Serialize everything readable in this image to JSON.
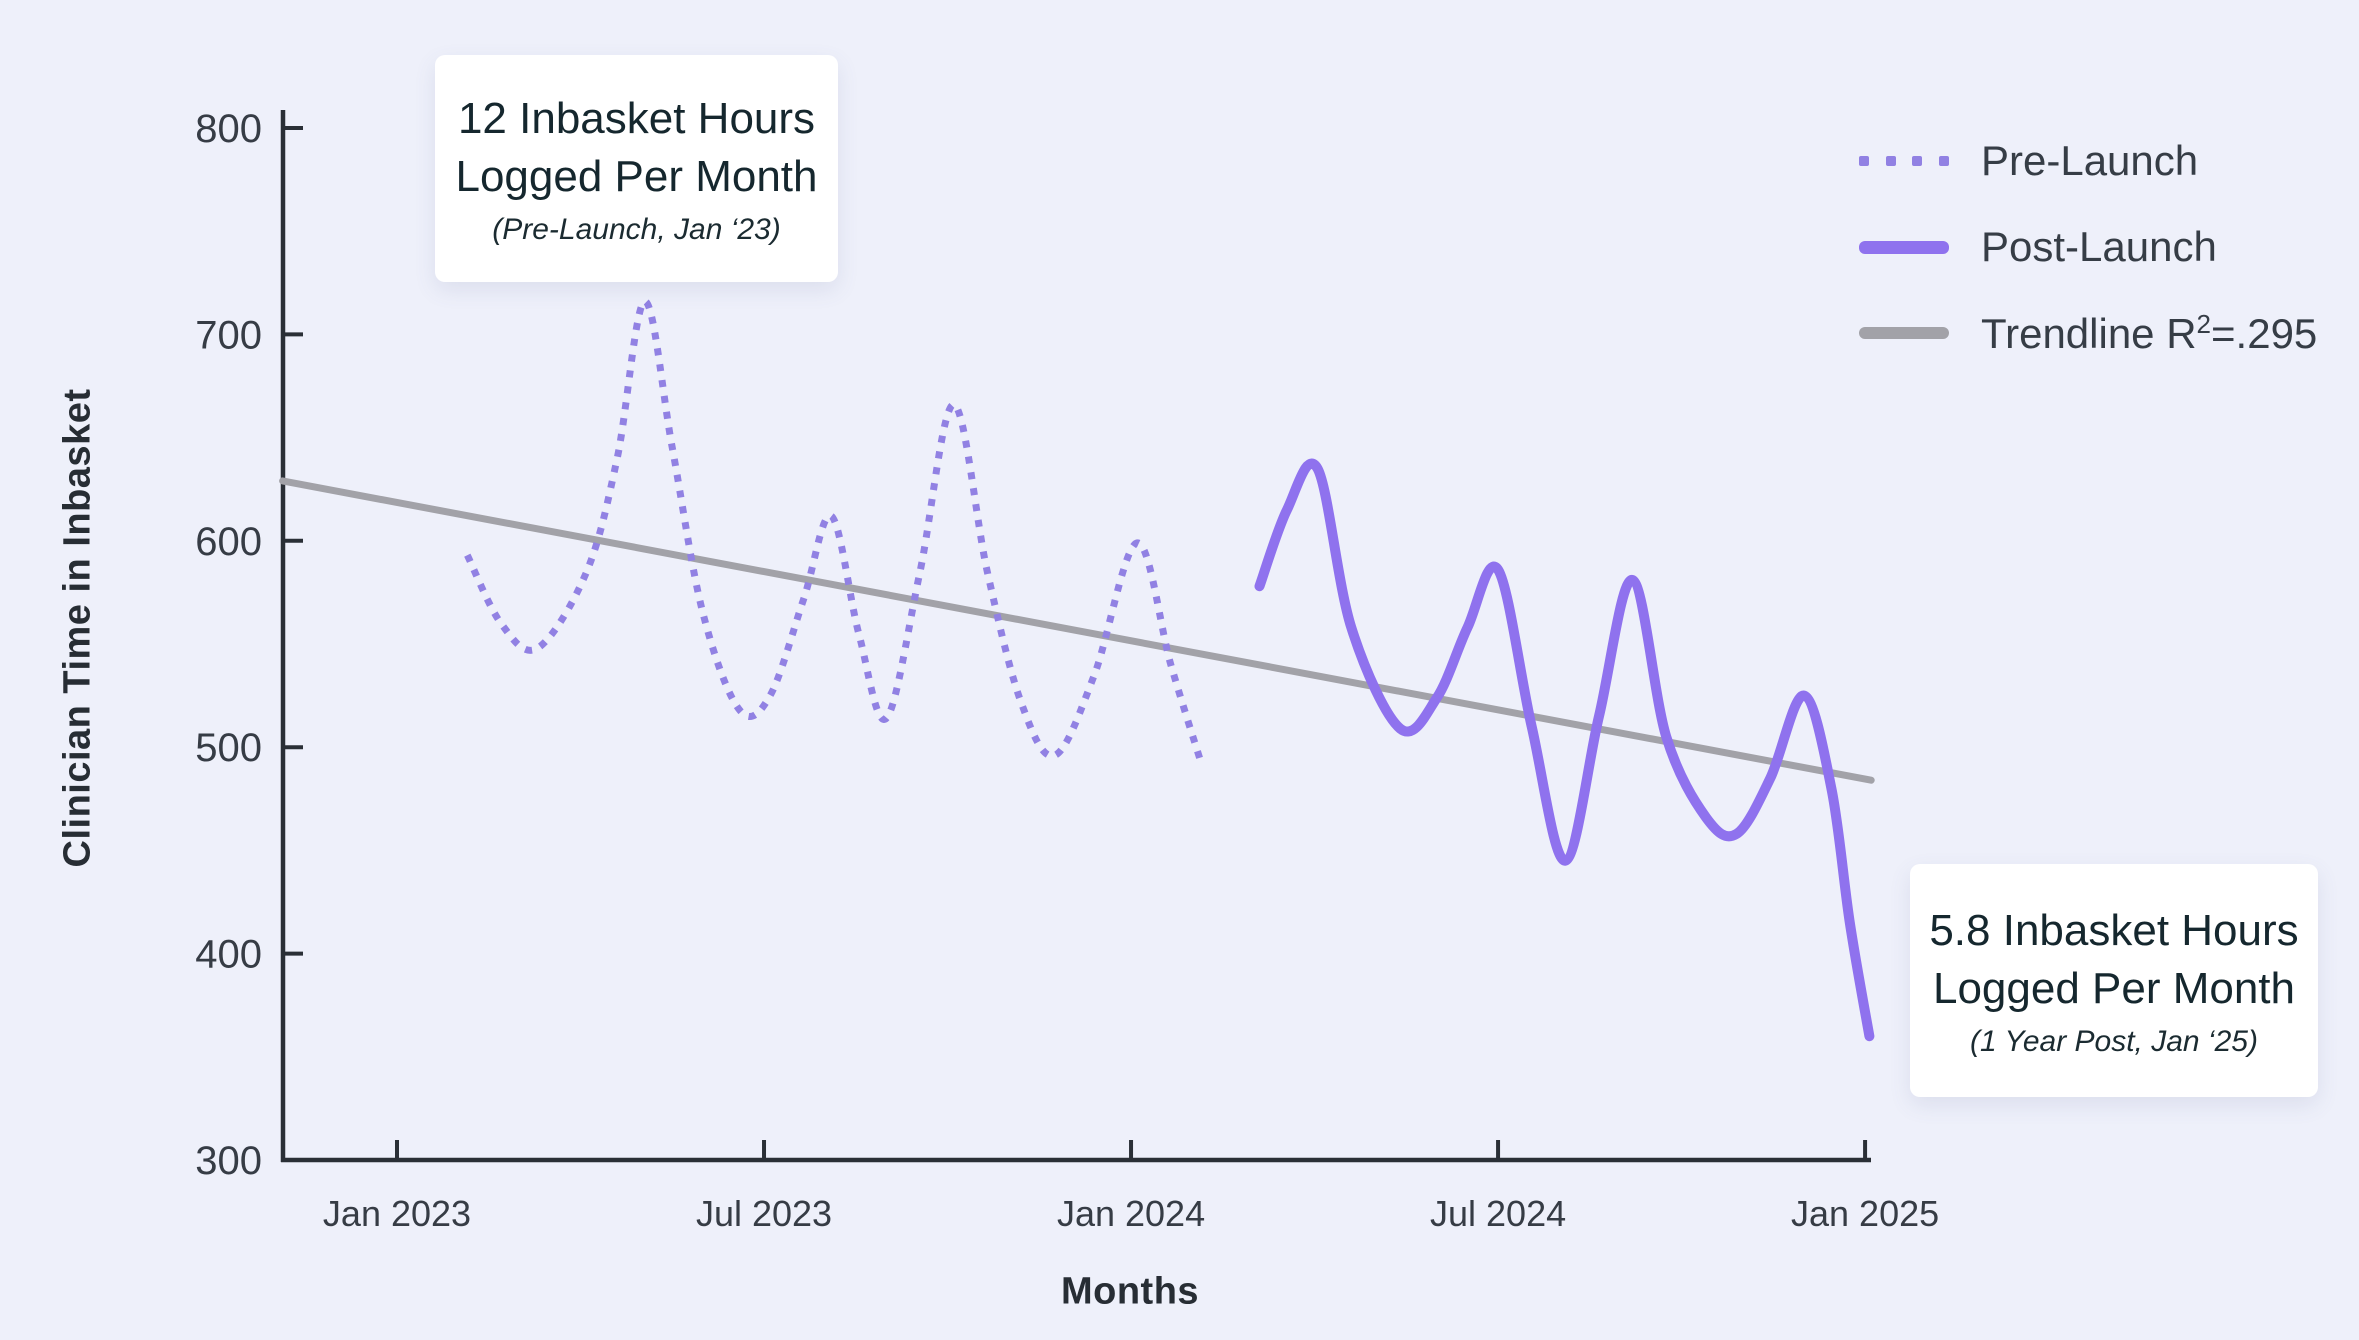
{
  "colors": {
    "background": "#eef0fa",
    "pre_launch": "#9181e3",
    "post_launch": "#8f72ee",
    "trendline": "#a2a2a8",
    "axis": "#2a2f36",
    "tick_text": "#363c45",
    "annotation_bg": "#ffffff",
    "annotation_text": "#15272e"
  },
  "chart_data": {
    "type": "line",
    "xlabel": "Months",
    "ylabel": "Clinician Time in Inbasket",
    "ylim": [
      300,
      800
    ],
    "y_ticks": [
      800,
      700,
      600,
      500,
      400,
      300
    ],
    "x_ticks": [
      {
        "label": "Jan 2023",
        "month": 0
      },
      {
        "label": "Jul 2023",
        "month": 6
      },
      {
        "label": "Jan 2024",
        "month": 12
      },
      {
        "label": "Jul 2024",
        "month": 18
      },
      {
        "label": "Jan 2025",
        "month": 24
      }
    ],
    "x_note": "month 0 = Jan 2023",
    "grid": false,
    "legend_position": "top-right",
    "series": [
      {
        "name": "Pre-Launch",
        "style": "dotted",
        "points": [
          [
            1.15,
            593
          ],
          [
            1.7,
            560
          ],
          [
            2.3,
            548
          ],
          [
            3.1,
            585
          ],
          [
            3.6,
            640
          ],
          [
            4.05,
            716
          ],
          [
            4.5,
            645
          ],
          [
            5.0,
            565
          ],
          [
            5.6,
            518
          ],
          [
            6.1,
            525
          ],
          [
            6.65,
            572
          ],
          [
            7.1,
            612
          ],
          [
            7.55,
            555
          ],
          [
            8.0,
            514
          ],
          [
            8.55,
            585
          ],
          [
            9.1,
            666
          ],
          [
            9.65,
            585
          ],
          [
            10.2,
            522
          ],
          [
            10.75,
            496
          ],
          [
            11.4,
            535
          ],
          [
            12.1,
            599
          ],
          [
            12.65,
            540
          ],
          [
            13.15,
            492
          ]
        ]
      },
      {
        "name": "Post-Launch",
        "style": "solid",
        "points": [
          [
            14.1,
            578
          ],
          [
            14.55,
            615
          ],
          [
            15.05,
            635
          ],
          [
            15.6,
            558
          ],
          [
            16.4,
            509
          ],
          [
            17.0,
            524
          ],
          [
            17.5,
            558
          ],
          [
            18.0,
            586
          ],
          [
            18.55,
            510
          ],
          [
            19.1,
            445
          ],
          [
            19.65,
            515
          ],
          [
            20.2,
            581
          ],
          [
            20.75,
            505
          ],
          [
            21.4,
            466
          ],
          [
            21.9,
            458
          ],
          [
            22.45,
            485
          ],
          [
            23.0,
            525
          ],
          [
            23.45,
            480
          ],
          [
            23.75,
            415
          ],
          [
            24.07,
            360
          ]
        ]
      },
      {
        "name": "Trendline",
        "style": "trend",
        "r_squared": ".295",
        "points": [
          [
            -1.87,
            629
          ],
          [
            24.1,
            484
          ]
        ]
      }
    ]
  },
  "legend": [
    {
      "label": "Pre-Launch"
    },
    {
      "label": "Post-Launch"
    },
    {
      "prefix": "Trendline R",
      "sup": "2",
      "suffix": "=.295"
    }
  ],
  "annotations": [
    {
      "line1": "12 Inbasket Hours",
      "line2": "Logged Per Month",
      "subtitle": "(Pre-Launch, Jan ‘23)"
    },
    {
      "line1": "5.8 Inbasket Hours",
      "line2": "Logged Per Month",
      "subtitle": "(1 Year Post, Jan ‘25)"
    }
  ]
}
